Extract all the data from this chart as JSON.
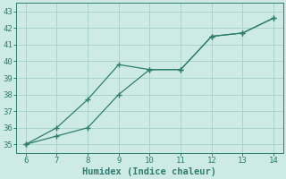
{
  "line1_x": [
    6,
    7,
    8,
    9,
    10,
    11,
    12,
    13,
    14
  ],
  "line1_y": [
    35.0,
    35.5,
    36.0,
    38.0,
    39.5,
    39.5,
    41.5,
    41.7,
    42.6
  ],
  "line2_x": [
    6,
    7,
    8,
    9,
    10,
    11,
    12,
    13,
    14
  ],
  "line2_y": [
    35.0,
    36.0,
    37.7,
    39.8,
    39.5,
    39.5,
    41.5,
    41.7,
    42.6
  ],
  "line_color": "#2e7d6e",
  "bg_color": "#ceeae4",
  "grid_color": "#aad4cc",
  "xlabel": "Humidex (Indice chaleur)",
  "xlim": [
    5.7,
    14.3
  ],
  "ylim": [
    34.5,
    43.5
  ],
  "xticks": [
    6,
    7,
    8,
    9,
    10,
    11,
    12,
    13,
    14
  ],
  "yticks": [
    35,
    36,
    37,
    38,
    39,
    40,
    41,
    42,
    43
  ],
  "tick_fontsize": 6.5,
  "xlabel_fontsize": 7.5,
  "marker": "+",
  "markersize": 4,
  "linewidth": 0.9
}
